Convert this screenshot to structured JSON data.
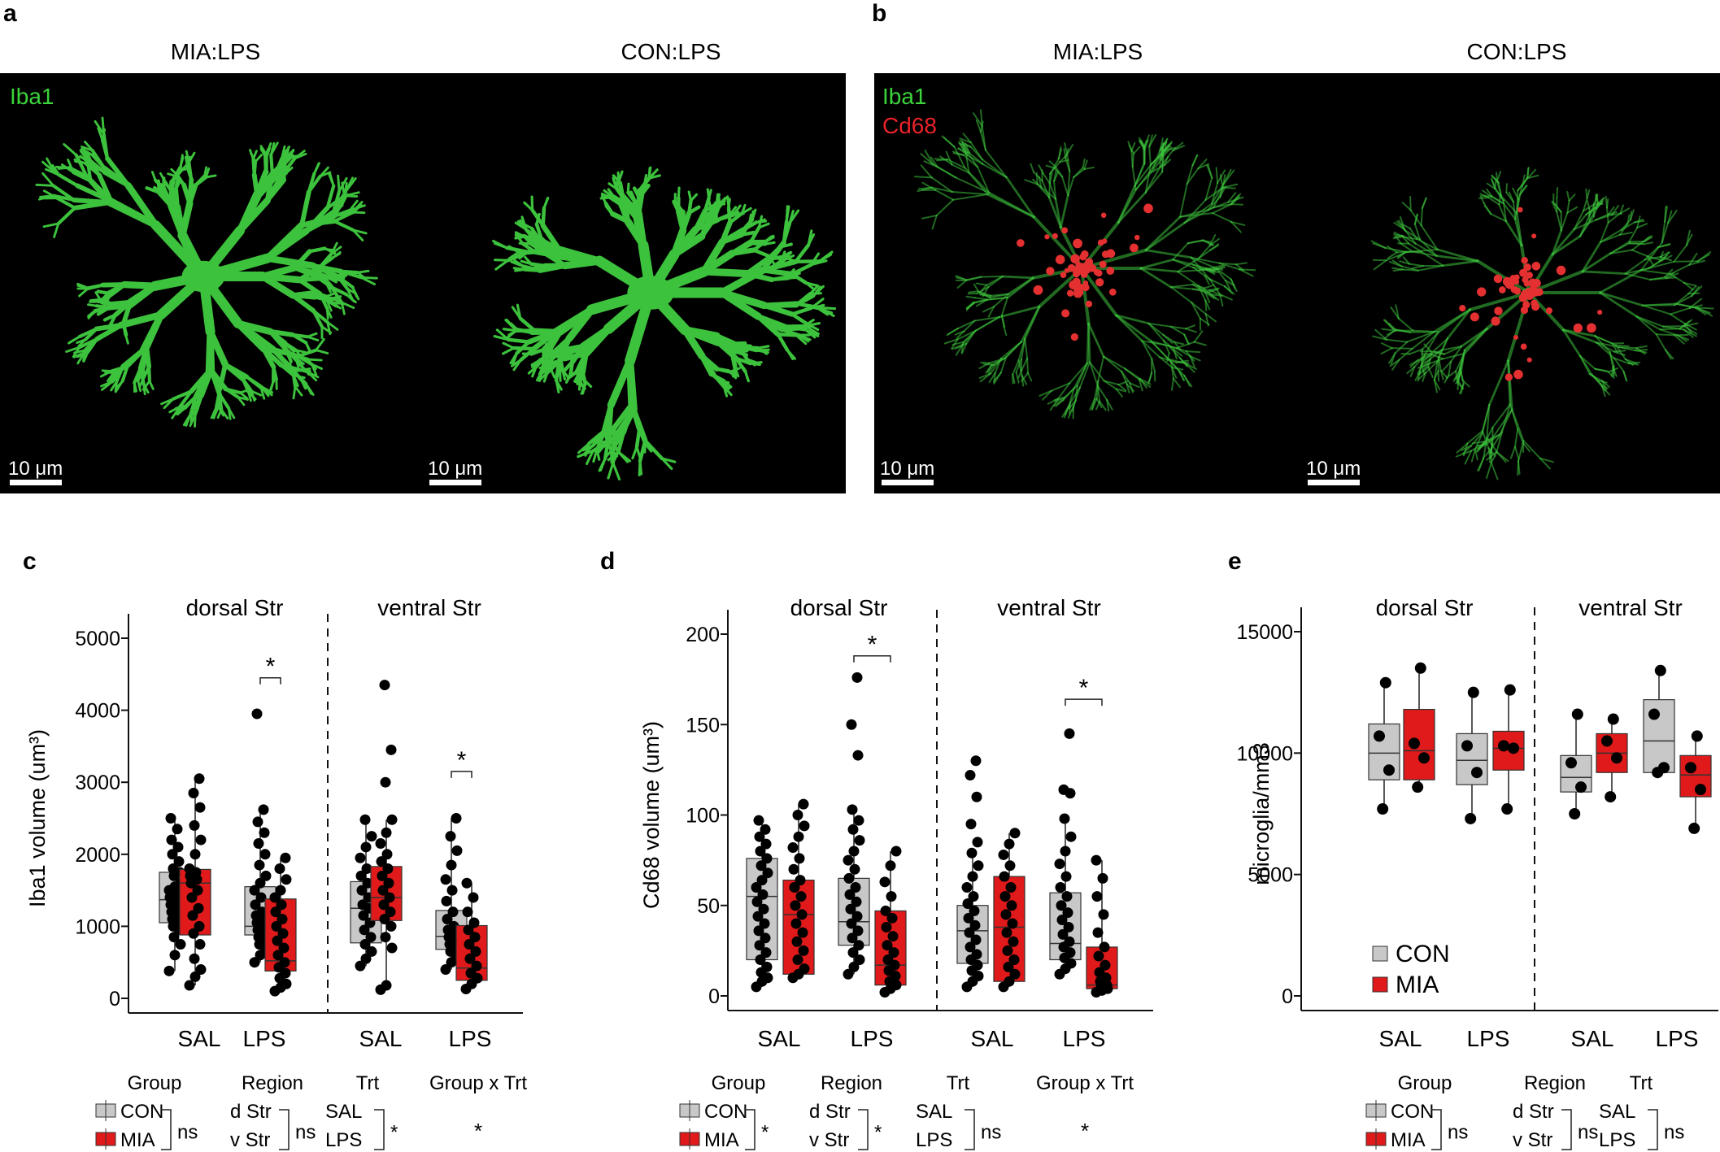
{
  "panel_letters": {
    "a": "a",
    "b": "b",
    "c": "c",
    "d": "d",
    "e": "e"
  },
  "images": {
    "a": {
      "left_title": "MIA:LPS",
      "right_title": "CON:LPS",
      "channel_labels": [
        {
          "text": "Iba1",
          "color": "#3bd43b"
        }
      ],
      "scale_bar": "10 μm"
    },
    "b": {
      "left_title": "MIA:LPS",
      "right_title": "CON:LPS",
      "channel_labels": [
        {
          "text": "Iba1",
          "color": "#3bd43b"
        },
        {
          "text": "Cd68",
          "color": "#e8222a"
        }
      ],
      "scale_bar": "10 μm"
    }
  },
  "colors": {
    "CON": "#c8c8c8",
    "MIA": "#e01a1a",
    "point": "#000000",
    "iba1": "#3cc23c",
    "cd68": "#e43030"
  },
  "chart_data": [
    {
      "id": "c",
      "type": "box",
      "ylabel": "Iba1 volume (um³)",
      "yticks": [
        0,
        1000,
        2000,
        3000,
        4000,
        5000
      ],
      "ylim": [
        0,
        5000
      ],
      "regions": [
        "dorsal Str",
        "ventral Str"
      ],
      "treatments": [
        "SAL",
        "LPS"
      ],
      "groups": [
        {
          "region": "dorsal Str",
          "trt": "SAL",
          "group": "CON",
          "q1": 1050,
          "median": 1370,
          "q3": 1750,
          "whisker": [
            380,
            2500
          ],
          "points": [
            380,
            600,
            750,
            850,
            950,
            1000,
            1050,
            1100,
            1150,
            1200,
            1250,
            1300,
            1350,
            1400,
            1450,
            1500,
            1550,
            1600,
            1700,
            1750,
            1800,
            1900,
            2000,
            2100,
            2200,
            2350,
            2500
          ]
        },
        {
          "region": "dorsal Str",
          "trt": "SAL",
          "group": "MIA",
          "q1": 880,
          "median": 1600,
          "q3": 1790,
          "whisker": [
            180,
            3050
          ],
          "points": [
            180,
            300,
            400,
            550,
            750,
            900,
            1000,
            1150,
            1250,
            1400,
            1500,
            1600,
            1650,
            1700,
            1750,
            1800,
            2000,
            2200,
            2400,
            2650,
            2850,
            3050
          ]
        },
        {
          "region": "dorsal Str",
          "trt": "LPS",
          "group": "CON",
          "q1": 880,
          "median": 1000,
          "q3": 1550,
          "whisker": [
            500,
            2620
          ],
          "points": [
            500,
            600,
            700,
            750,
            800,
            850,
            900,
            950,
            1000,
            1050,
            1100,
            1150,
            1200,
            1300,
            1400,
            1500,
            1600,
            1700,
            1850,
            2000,
            2150,
            2300,
            2450,
            2620,
            3950
          ]
        },
        {
          "region": "dorsal Str",
          "trt": "LPS",
          "group": "MIA",
          "q1": 380,
          "median": 520,
          "q3": 1380,
          "whisker": [
            100,
            1950
          ],
          "points": [
            100,
            150,
            200,
            280,
            350,
            430,
            500,
            600,
            700,
            800,
            900,
            1000,
            1100,
            1200,
            1300,
            1400,
            1500,
            1650,
            1800,
            1950
          ]
        },
        {
          "region": "ventral Str",
          "trt": "SAL",
          "group": "CON",
          "q1": 770,
          "median": 1250,
          "q3": 1620,
          "whisker": [
            450,
            2480
          ],
          "points": [
            450,
            550,
            650,
            750,
            850,
            950,
            1050,
            1150,
            1250,
            1300,
            1400,
            1500,
            1600,
            1700,
            1800,
            1950,
            2100,
            2250,
            2480
          ]
        },
        {
          "region": "ventral Str",
          "trt": "SAL",
          "group": "MIA",
          "q1": 1080,
          "median": 1400,
          "q3": 1830,
          "whisker": [
            120,
            2480
          ],
          "points": [
            120,
            180,
            700,
            850,
            1000,
            1100,
            1200,
            1300,
            1400,
            1500,
            1600,
            1700,
            1800,
            1900,
            2000,
            2150,
            2300,
            2480,
            3000,
            3450,
            4350
          ]
        },
        {
          "region": "ventral Str",
          "trt": "LPS",
          "group": "CON",
          "q1": 680,
          "median": 860,
          "q3": 1220,
          "whisker": [
            400,
            2500
          ],
          "points": [
            400,
            500,
            580,
            650,
            700,
            750,
            800,
            850,
            900,
            950,
            1000,
            1100,
            1200,
            1350,
            1500,
            1650,
            1850,
            2050,
            2250,
            2500
          ]
        },
        {
          "region": "ventral Str",
          "trt": "LPS",
          "group": "MIA",
          "q1": 250,
          "median": 420,
          "q3": 1010,
          "whisker": [
            130,
            1600
          ],
          "points": [
            130,
            200,
            280,
            350,
            450,
            550,
            650,
            750,
            850,
            950,
            1050,
            1200,
            1400,
            1600
          ]
        }
      ],
      "significance": [
        {
          "region": "dorsal Str",
          "trt": "LPS",
          "label": "*",
          "y": 4450
        },
        {
          "region": "ventral Str",
          "trt": "LPS",
          "label": "*",
          "y": 3150
        }
      ],
      "stats": {
        "factors": [
          {
            "header": "Group",
            "items": [
              "CON",
              "MIA"
            ],
            "result": "ns",
            "with_boxes": true
          },
          {
            "header": "Region",
            "items": [
              "d Str",
              "v Str"
            ],
            "result": "ns",
            "with_boxes": false
          },
          {
            "header": "Trt",
            "items": [
              "SAL",
              "LPS"
            ],
            "result": "*",
            "with_boxes": false
          },
          {
            "header": "Group x Trt",
            "items": [],
            "result": "*",
            "with_boxes": false
          }
        ]
      }
    },
    {
      "id": "d",
      "type": "box",
      "ylabel": "Cd68 volume (um³)",
      "yticks": [
        0,
        50,
        100,
        150,
        200
      ],
      "ylim": [
        0,
        200
      ],
      "regions": [
        "dorsal Str",
        "ventral Str"
      ],
      "treatments": [
        "SAL",
        "LPS"
      ],
      "groups": [
        {
          "region": "dorsal Str",
          "trt": "SAL",
          "group": "CON",
          "q1": 20,
          "median": 55,
          "q3": 76,
          "whisker": [
            5,
            97
          ],
          "points": [
            5,
            8,
            10,
            13,
            16,
            20,
            24,
            28,
            32,
            36,
            40,
            44,
            48,
            52,
            56,
            60,
            64,
            68,
            72,
            76,
            80,
            84,
            88,
            92,
            97
          ]
        },
        {
          "region": "dorsal Str",
          "trt": "SAL",
          "group": "MIA",
          "q1": 12,
          "median": 45,
          "q3": 64,
          "whisker": [
            10,
            106
          ],
          "points": [
            10,
            12,
            15,
            20,
            25,
            30,
            35,
            40,
            45,
            50,
            55,
            60,
            64,
            70,
            76,
            82,
            88,
            94,
            100,
            106
          ]
        },
        {
          "region": "dorsal Str",
          "trt": "LPS",
          "group": "CON",
          "q1": 28,
          "median": 41,
          "q3": 65,
          "whisker": [
            12,
            103
          ],
          "points": [
            12,
            16,
            20,
            24,
            28,
            32,
            36,
            40,
            44,
            48,
            52,
            56,
            60,
            65,
            70,
            75,
            80,
            86,
            92,
            97,
            103,
            133,
            150,
            176
          ]
        },
        {
          "region": "dorsal Str",
          "trt": "LPS",
          "group": "MIA",
          "q1": 6,
          "median": 17,
          "q3": 47,
          "whisker": [
            2,
            80
          ],
          "points": [
            2,
            4,
            6,
            8,
            11,
            14,
            17,
            20,
            24,
            28,
            33,
            38,
            43,
            47,
            55,
            63,
            72,
            80
          ]
        },
        {
          "region": "ventral Str",
          "trt": "SAL",
          "group": "CON",
          "q1": 18,
          "median": 36,
          "q3": 50,
          "whisker": [
            5,
            79
          ],
          "points": [
            5,
            8,
            11,
            14,
            17,
            20,
            23,
            27,
            31,
            35,
            39,
            43,
            47,
            51,
            55,
            60,
            66,
            72,
            79,
            85,
            95,
            110,
            122,
            130
          ]
        },
        {
          "region": "ventral Str",
          "trt": "SAL",
          "group": "MIA",
          "q1": 8,
          "median": 38,
          "q3": 66,
          "whisker": [
            5,
            90
          ],
          "points": [
            5,
            8,
            12,
            16,
            20,
            25,
            30,
            35,
            40,
            45,
            50,
            55,
            60,
            66,
            72,
            78,
            84,
            90
          ]
        },
        {
          "region": "ventral Str",
          "trt": "LPS",
          "group": "CON",
          "q1": 20,
          "median": 29,
          "q3": 57,
          "whisker": [
            12,
            98
          ],
          "points": [
            12,
            15,
            18,
            21,
            24,
            27,
            30,
            34,
            38,
            42,
            46,
            50,
            55,
            60,
            66,
            73,
            80,
            88,
            98,
            112,
            114,
            145
          ]
        },
        {
          "region": "ventral Str",
          "trt": "LPS",
          "group": "MIA",
          "q1": 4,
          "median": 6,
          "q3": 27,
          "whisker": [
            2,
            75
          ],
          "points": [
            2,
            3,
            4,
            5,
            6,
            8,
            10,
            13,
            17,
            22,
            27,
            35,
            45,
            55,
            65,
            75
          ]
        }
      ],
      "significance": [
        {
          "region": "dorsal Str",
          "trt": "LPS",
          "label": "*",
          "y": 188
        },
        {
          "region": "ventral Str",
          "trt": "LPS",
          "label": "*",
          "y": 164
        }
      ],
      "stats": {
        "factors": [
          {
            "header": "Group",
            "items": [
              "CON",
              "MIA"
            ],
            "result": "*",
            "with_boxes": true
          },
          {
            "header": "Region",
            "items": [
              "d Str",
              "v Str"
            ],
            "result": "*",
            "with_boxes": false
          },
          {
            "header": "Trt",
            "items": [
              "SAL",
              "LPS"
            ],
            "result": "ns",
            "with_boxes": false
          },
          {
            "header": "Group x Trt",
            "items": [],
            "result": "*",
            "with_boxes": false
          }
        ]
      }
    },
    {
      "id": "e",
      "type": "box",
      "ylabel": "microglia/mm3",
      "yticks": [
        0,
        5000,
        10000,
        15000
      ],
      "ylim": [
        0,
        15000
      ],
      "regions": [
        "dorsal Str",
        "ventral Str"
      ],
      "treatments": [
        "SAL",
        "LPS"
      ],
      "legend": {
        "position": "bottom-left",
        "entries": [
          "CON",
          "MIA"
        ]
      },
      "groups": [
        {
          "region": "dorsal Str",
          "trt": "SAL",
          "group": "CON",
          "q1": 8900,
          "median": 10000,
          "q3": 11200,
          "whisker": [
            7700,
            12900
          ],
          "points": [
            7700,
            9300,
            10700,
            12900
          ]
        },
        {
          "region": "dorsal Str",
          "trt": "SAL",
          "group": "MIA",
          "q1": 8900,
          "median": 10100,
          "q3": 11800,
          "whisker": [
            8600,
            13500
          ],
          "points": [
            8600,
            9800,
            10400,
            13500
          ]
        },
        {
          "region": "dorsal Str",
          "trt": "LPS",
          "group": "CON",
          "q1": 8700,
          "median": 9700,
          "q3": 10800,
          "whisker": [
            7300,
            12500
          ],
          "points": [
            7300,
            9200,
            10300,
            12500
          ]
        },
        {
          "region": "dorsal Str",
          "trt": "LPS",
          "group": "MIA",
          "q1": 9300,
          "median": 10200,
          "q3": 10900,
          "whisker": [
            7700,
            12600
          ],
          "points": [
            7700,
            10200,
            10300,
            12600
          ]
        },
        {
          "region": "ventral Str",
          "trt": "SAL",
          "group": "CON",
          "q1": 8400,
          "median": 9000,
          "q3": 9900,
          "whisker": [
            7500,
            11600
          ],
          "points": [
            7500,
            8600,
            9600,
            11600
          ]
        },
        {
          "region": "ventral Str",
          "trt": "SAL",
          "group": "MIA",
          "q1": 9200,
          "median": 10000,
          "q3": 10800,
          "whisker": [
            8200,
            11400
          ],
          "points": [
            8200,
            9800,
            10500,
            11400
          ]
        },
        {
          "region": "ventral Str",
          "trt": "LPS",
          "group": "CON",
          "q1": 9200,
          "median": 10500,
          "q3": 12200,
          "whisker": [
            9200,
            13400
          ],
          "points": [
            9200,
            9400,
            11600,
            13400
          ]
        },
        {
          "region": "ventral Str",
          "trt": "LPS",
          "group": "MIA",
          "q1": 8200,
          "median": 9100,
          "q3": 9900,
          "whisker": [
            6900,
            10700
          ],
          "points": [
            6900,
            8500,
            9400,
            10700
          ]
        }
      ],
      "significance": [],
      "stats": {
        "factors": [
          {
            "header": "Group",
            "items": [
              "CON",
              "MIA"
            ],
            "result": "ns",
            "with_boxes": true
          },
          {
            "header": "Region",
            "items": [
              "d Str",
              "v Str"
            ],
            "result": "ns",
            "with_boxes": false
          },
          {
            "header": "Trt",
            "items": [
              "SAL",
              "LPS"
            ],
            "result": "ns",
            "with_boxes": false
          }
        ]
      }
    }
  ]
}
